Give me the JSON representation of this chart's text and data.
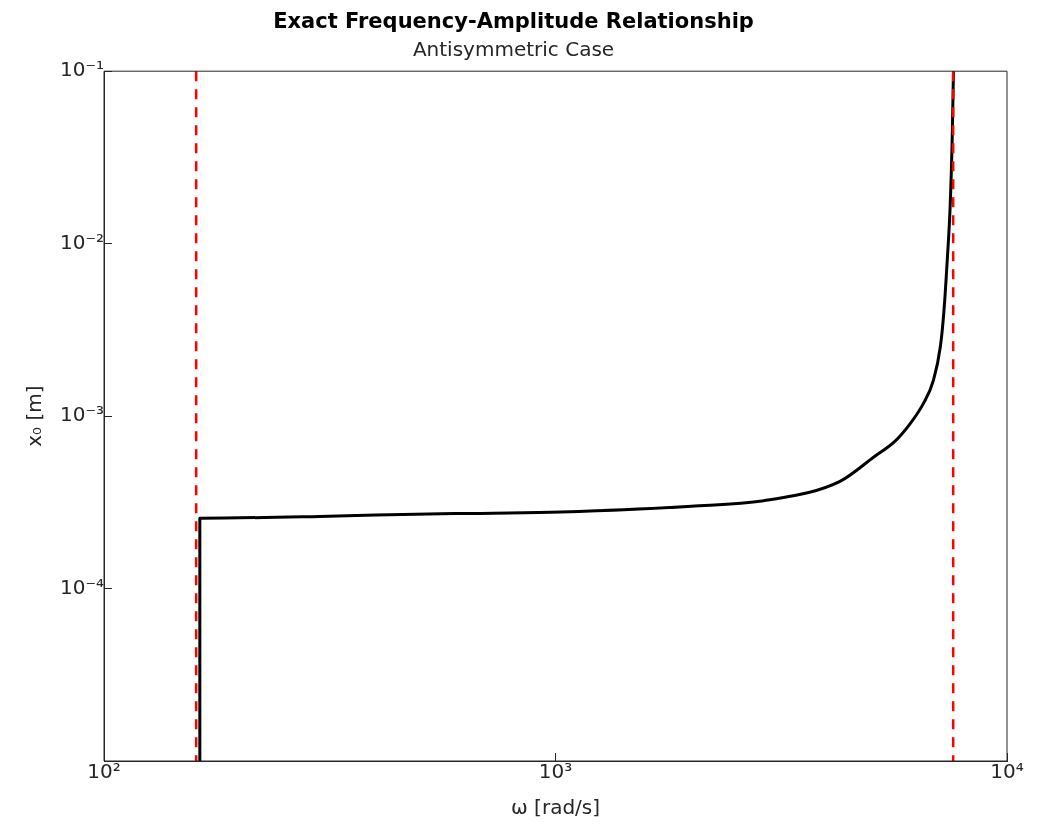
{
  "chart_data": {
    "type": "line",
    "title": "Exact Frequency-Amplitude Relationship",
    "subtitle": "Antisymmetric Case",
    "xlabel": "ω [rad/s]",
    "ylabel": "x₀ [m]",
    "log": "xy",
    "grid": false,
    "legend": false,
    "xlim": [
      100,
      10000
    ],
    "xticks": [
      {
        "value": 100,
        "label": "10²"
      },
      {
        "value": 1000,
        "label": "10³"
      },
      {
        "value": 10000,
        "label": "10⁴"
      }
    ],
    "ylim": [
      1e-05,
      0.1
    ],
    "yticks": [
      {
        "value": 0.0001,
        "label": "10⁻⁴"
      },
      {
        "value": 0.001,
        "label": "10⁻³"
      },
      {
        "value": 0.01,
        "label": "10⁻²"
      },
      {
        "value": 0.1,
        "label": "10⁻¹"
      }
    ],
    "series": [
      {
        "color": "#000000",
        "x": [
          163,
          163,
          300,
          400,
          600,
          1027,
          2000,
          2982,
          4256,
          5080,
          5652,
          6056,
          6512,
          6871,
          7122,
          7251,
          7377,
          7483,
          7563,
          7610
        ],
        "values": [
          1e-05,
          0.000256,
          0.000262,
          0.000267,
          0.000272,
          0.000278,
          0.0003,
          0.000327,
          0.000417,
          0.000581,
          0.000716,
          0.000881,
          0.00117,
          0.00161,
          0.00255,
          0.00409,
          0.0082,
          0.0165,
          0.0415,
          0.1
        ]
      }
    ],
    "ref_lines": [
      {
        "axis": "x",
        "value": 160,
        "color": "#ff0000",
        "line_style": "dashed"
      },
      {
        "axis": "x",
        "value": 7600,
        "color": "#ff0000",
        "line_style": "dashed"
      }
    ]
  }
}
